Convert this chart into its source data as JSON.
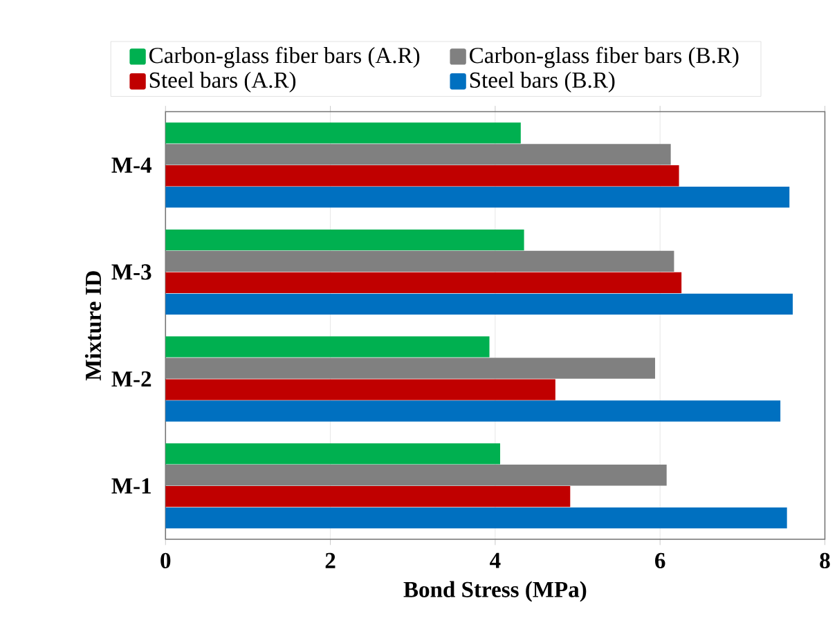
{
  "chart_data": {
    "type": "bar",
    "orientation": "horizontal",
    "xlabel": "Bond Stress (MPa)",
    "ylabel": "Mixture ID",
    "categories": [
      "M-4",
      "M-3",
      "M-2",
      "M-1"
    ],
    "series": [
      {
        "name": "Carbon-glass fiber bars (A.R)",
        "color": "#00b050",
        "values": [
          4.31,
          4.35,
          3.93,
          4.06
        ]
      },
      {
        "name": "Carbon-glass fiber bars (B.R)",
        "color": "#808080",
        "values": [
          6.13,
          6.17,
          5.94,
          6.08
        ]
      },
      {
        "name": "Steel bars (A.R)",
        "color": "#c00000",
        "values": [
          6.23,
          6.26,
          4.73,
          4.91
        ]
      },
      {
        "name": "Steel bars (B.R)",
        "color": "#0070c0",
        "values": [
          7.57,
          7.61,
          7.46,
          7.54
        ]
      }
    ],
    "xlim": [
      0,
      8
    ],
    "xticks": [
      0,
      2,
      4,
      6,
      8
    ],
    "grid": "x",
    "legend": "top"
  }
}
